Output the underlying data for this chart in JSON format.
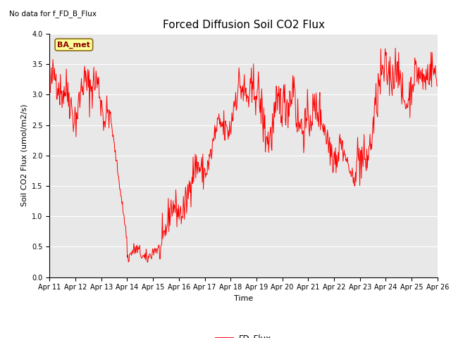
{
  "title": "Forced Diffusion Soil CO2 Flux",
  "xlabel": "Time",
  "ylabel": "Soil CO2 Flux (umol/m2/s)",
  "top_left_text": "No data for f_FD_B_Flux",
  "legend_label": "FD_Flux",
  "box_label": "BA_met",
  "ylim": [
    0.0,
    4.0
  ],
  "yticks": [
    0.0,
    0.5,
    1.0,
    1.5,
    2.0,
    2.5,
    3.0,
    3.5,
    4.0
  ],
  "line_color": "#FF0000",
  "background_color": "#E8E8E8",
  "fig_background": "#FFFFFF",
  "xtick_labels": [
    "Apr 11",
    "Apr 12",
    "Apr 13",
    "Apr 14",
    "Apr 15",
    "Apr 16",
    "Apr 17",
    "Apr 18",
    "Apr 19",
    "Apr 20",
    "Apr 21",
    "Apr 22",
    "Apr 23",
    "Apr 24",
    "Apr 25",
    "Apr 26"
  ],
  "seed": 42,
  "title_fontsize": 11,
  "label_fontsize": 8,
  "tick_fontsize": 7
}
